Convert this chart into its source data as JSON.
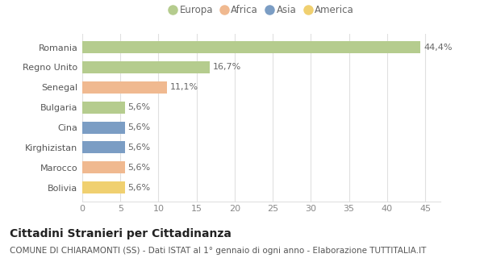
{
  "categories": [
    "Romania",
    "Regno Unito",
    "Senegal",
    "Bulgaria",
    "Cina",
    "Kirghizistan",
    "Marocco",
    "Bolivia"
  ],
  "values": [
    44.4,
    16.7,
    11.1,
    5.6,
    5.6,
    5.6,
    5.6,
    5.6
  ],
  "labels": [
    "44,4%",
    "16,7%",
    "11,1%",
    "5,6%",
    "5,6%",
    "5,6%",
    "5,6%",
    "5,6%"
  ],
  "bar_colors": [
    "#b5cc8e",
    "#b5cc8e",
    "#f0b990",
    "#b5cc8e",
    "#7b9dc4",
    "#7b9dc4",
    "#f0b990",
    "#f0d070"
  ],
  "legend_labels": [
    "Europa",
    "Africa",
    "Asia",
    "America"
  ],
  "legend_colors": [
    "#b5cc8e",
    "#f0b990",
    "#7b9dc4",
    "#f0d070"
  ],
  "title": "Cittadini Stranieri per Cittadinanza",
  "subtitle": "COMUNE DI CHIARAMONTI (SS) - Dati ISTAT al 1° gennaio di ogni anno - Elaborazione TUTTITALIA.IT",
  "xlim": [
    0,
    47
  ],
  "xticks": [
    0,
    5,
    10,
    15,
    20,
    25,
    30,
    35,
    40,
    45
  ],
  "background_color": "#ffffff",
  "grid_color": "#e0e0e0",
  "bar_height": 0.6,
  "title_fontsize": 10,
  "subtitle_fontsize": 7.5,
  "tick_fontsize": 8,
  "label_fontsize": 8,
  "legend_fontsize": 8.5
}
